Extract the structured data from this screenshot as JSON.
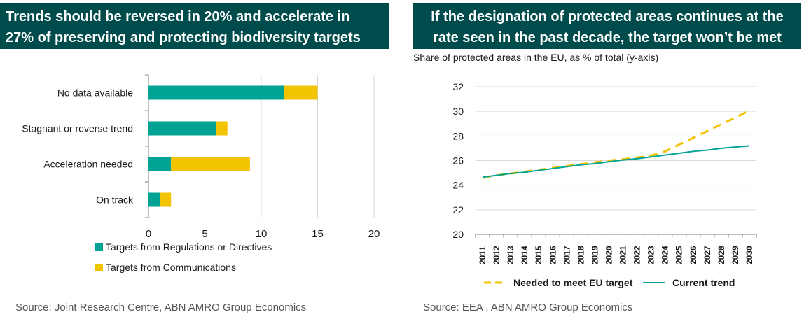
{
  "left_panel": {
    "title": "Trends should be reversed in 20% and accelerate in\n27% of preserving and protecting biodiversity targets",
    "source": "Source: Joint Research Centre, ABN AMRO Group Economics"
  },
  "right_panel": {
    "title": "If the designation of protected areas continues at the\nrate seen in the past decade, the target won’t be met",
    "subtitle": "Share of protected areas in the EU, as % of total (y-axis)",
    "source": "Source: EEA , ABN AMRO Group Economics"
  },
  "chart_data": [
    {
      "type": "bar",
      "orientation": "horizontal",
      "stacked": true,
      "categories": [
        "No data available",
        "Stagnant or reverse trend",
        "Acceleration needed",
        "On track"
      ],
      "series": [
        {
          "name": "Targets from Regulations or Directives",
          "values": [
            12,
            6,
            2,
            1
          ],
          "color": "#00a394"
        },
        {
          "name": "Targets from Communications",
          "values": [
            3,
            1,
            7,
            1
          ],
          "color": "#f2c300"
        }
      ],
      "xlim": [
        0,
        20
      ],
      "xticks": [
        "0",
        "5",
        "10",
        "15",
        "20"
      ],
      "grid": true,
      "legend": "bottom"
    },
    {
      "type": "line",
      "x": [
        "2011",
        "2012",
        "2013",
        "2014",
        "2015",
        "2016",
        "2017",
        "2018",
        "2019",
        "2020",
        "2021",
        "2022",
        "2023",
        "2024",
        "2025",
        "2026",
        "2027",
        "2028",
        "2029",
        "2030"
      ],
      "series": [
        {
          "name": "Needed to meet EU target",
          "style": "dashed",
          "color": "#f2c300",
          "values": [
            24.6,
            24.8,
            24.95,
            25.1,
            25.25,
            25.4,
            25.55,
            25.7,
            25.85,
            26.0,
            26.1,
            26.25,
            26.4,
            26.75,
            27.3,
            27.85,
            28.4,
            28.95,
            29.5,
            30.05
          ]
        },
        {
          "name": "Current trend",
          "style": "solid",
          "color": "#00a394",
          "values": [
            24.65,
            24.8,
            24.95,
            25.05,
            25.2,
            25.35,
            25.5,
            25.65,
            25.75,
            25.9,
            26.05,
            26.15,
            26.3,
            26.45,
            26.6,
            26.75,
            26.85,
            27.0,
            27.1,
            27.2
          ]
        }
      ],
      "ylim": [
        20,
        32
      ],
      "yticks": [
        "20",
        "22",
        "24",
        "26",
        "28",
        "30",
        "32"
      ],
      "grid": true,
      "legend": "bottom"
    }
  ]
}
